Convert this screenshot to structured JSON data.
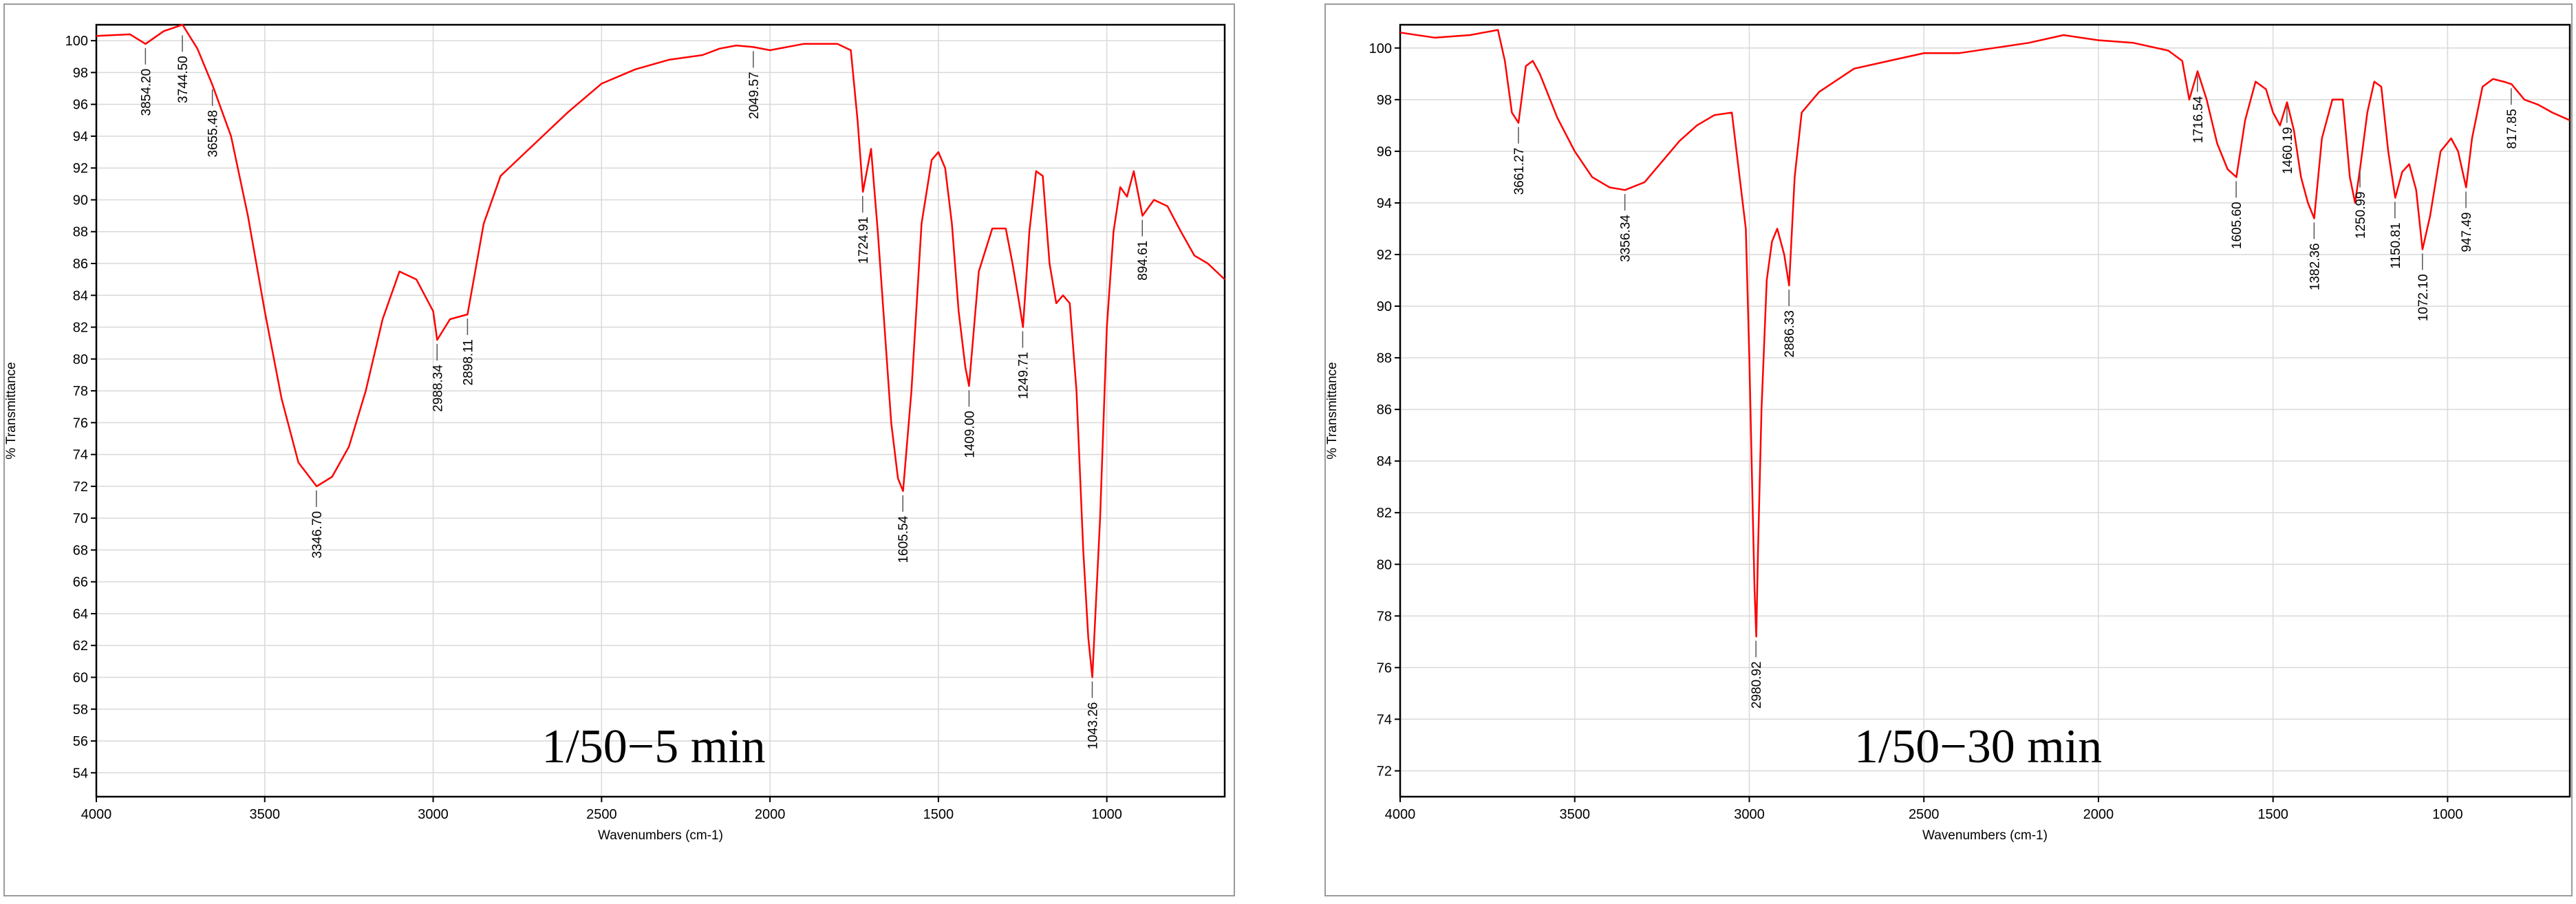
{
  "chart_data": [
    {
      "type": "line",
      "annotation": "1/50−5 min",
      "xlabel": "Wavenumbers (cm-1)",
      "ylabel": "% Transmittance",
      "xlim": [
        4000,
        650
      ],
      "ylim": [
        52.5,
        101
      ],
      "x_ticks": [
        4000,
        3500,
        3000,
        2500,
        2000,
        1500,
        1000
      ],
      "y_ticks": [
        54,
        56,
        58,
        60,
        62,
        64,
        66,
        68,
        70,
        72,
        74,
        76,
        78,
        80,
        82,
        84,
        86,
        88,
        90,
        92,
        94,
        96,
        98,
        100
      ],
      "line_color": "#ff0000",
      "series": [
        {
          "x": [
            4000,
            3900,
            3854,
            3800,
            3744,
            3700,
            3655,
            3600,
            3550,
            3500,
            3450,
            3400,
            3346,
            3300,
            3250,
            3200,
            3150,
            3100,
            3050,
            3000,
            2988,
            2950,
            2898,
            2850,
            2800,
            2700,
            2600,
            2500,
            2400,
            2300,
            2200,
            2150,
            2100,
            2049,
            2000,
            1900,
            1800,
            1760,
            1740,
            1724,
            1700,
            1680,
            1660,
            1640,
            1620,
            1605,
            1580,
            1550,
            1520,
            1500,
            1480,
            1460,
            1440,
            1420,
            1409,
            1380,
            1340,
            1300,
            1280,
            1260,
            1249,
            1230,
            1210,
            1190,
            1170,
            1150,
            1130,
            1110,
            1090,
            1070,
            1055,
            1043,
            1020,
            1000,
            980,
            960,
            940,
            920,
            894,
            860,
            820,
            780,
            740,
            700,
            650
          ],
          "y": [
            100.3,
            100.4,
            99.8,
            100.6,
            101.0,
            99.5,
            97.2,
            94.0,
            89.0,
            83.0,
            77.5,
            73.5,
            72.0,
            72.6,
            74.5,
            78.0,
            82.5,
            85.5,
            85.0,
            83.0,
            81.2,
            82.5,
            82.8,
            88.5,
            91.5,
            93.5,
            95.5,
            97.3,
            98.2,
            98.8,
            99.1,
            99.5,
            99.7,
            99.6,
            99.4,
            99.8,
            99.8,
            99.4,
            95.0,
            90.5,
            93.2,
            88.0,
            82.0,
            76.0,
            72.5,
            71.7,
            78.0,
            88.5,
            92.5,
            93.0,
            92.0,
            88.5,
            83.0,
            79.5,
            78.3,
            85.5,
            88.2,
            88.2,
            86.0,
            83.5,
            82.0,
            88.0,
            91.8,
            91.5,
            86.0,
            83.5,
            84.0,
            83.5,
            78.0,
            68.0,
            62.5,
            60.0,
            70.0,
            82.0,
            88.0,
            90.8,
            90.2,
            91.8,
            89.0,
            90.0,
            89.6,
            88.0,
            86.5,
            86.0,
            85.0
          ]
        }
      ],
      "peak_labels": [
        {
          "label": "3854.20",
          "x": 3854.2,
          "y": 99.8
        },
        {
          "label": "3744.50",
          "x": 3744.5,
          "y": 100.6
        },
        {
          "label": "3655.48",
          "x": 3655.48,
          "y": 97.2
        },
        {
          "label": "3346.70",
          "x": 3346.7,
          "y": 72.0
        },
        {
          "label": "2988.34",
          "x": 2988.34,
          "y": 81.2
        },
        {
          "label": "2898.11",
          "x": 2898.11,
          "y": 82.8
        },
        {
          "label": "2049.57",
          "x": 2049.57,
          "y": 99.6
        },
        {
          "label": "1724.91",
          "x": 1724.91,
          "y": 90.5
        },
        {
          "label": "1605.54",
          "x": 1605.54,
          "y": 71.7
        },
        {
          "label": "1409.00",
          "x": 1409.0,
          "y": 78.3
        },
        {
          "label": "1249.71",
          "x": 1249.71,
          "y": 82.0
        },
        {
          "label": "1043.26",
          "x": 1043.26,
          "y": 60.0
        },
        {
          "label": "894.61",
          "x": 894.61,
          "y": 89.0
        }
      ]
    },
    {
      "type": "line",
      "annotation": "1/50−30 min",
      "xlabel": "Wavenumbers (cm-1)",
      "ylabel": "% Transmittance",
      "xlim": [
        4000,
        650
      ],
      "ylim": [
        71,
        100.9
      ],
      "x_ticks": [
        4000,
        3500,
        3000,
        2500,
        2000,
        1500,
        1000
      ],
      "y_ticks": [
        72,
        74,
        76,
        78,
        80,
        82,
        84,
        86,
        88,
        90,
        92,
        94,
        96,
        98,
        100
      ],
      "line_color": "#ff0000",
      "series": [
        {
          "x": [
            4000,
            3900,
            3800,
            3720,
            3700,
            3680,
            3661,
            3640,
            3620,
            3600,
            3550,
            3500,
            3450,
            3400,
            3356,
            3300,
            3250,
            3200,
            3150,
            3100,
            3050,
            3010,
            3000,
            2990,
            2985,
            2980,
            2975,
            2965,
            2950,
            2935,
            2920,
            2900,
            2886,
            2870,
            2850,
            2800,
            2700,
            2600,
            2500,
            2400,
            2300,
            2200,
            2100,
            2000,
            1900,
            1800,
            1760,
            1740,
            1716,
            1690,
            1660,
            1630,
            1605,
            1580,
            1550,
            1520,
            1500,
            1480,
            1460,
            1440,
            1420,
            1400,
            1382,
            1360,
            1330,
            1300,
            1280,
            1265,
            1250,
            1230,
            1210,
            1190,
            1170,
            1150,
            1130,
            1110,
            1090,
            1072,
            1050,
            1020,
            990,
            970,
            947,
            930,
            900,
            870,
            840,
            817,
            780,
            740,
            700,
            650
          ],
          "y": [
            100.6,
            100.4,
            100.5,
            100.7,
            99.5,
            97.5,
            97.1,
            99.3,
            99.5,
            99.0,
            97.3,
            96.0,
            95.0,
            94.6,
            94.5,
            94.8,
            95.6,
            96.4,
            97.0,
            97.4,
            97.5,
            93.0,
            88.0,
            82.0,
            79.0,
            77.2,
            80.5,
            86.0,
            91.0,
            92.5,
            93.0,
            92.0,
            90.8,
            95.0,
            97.5,
            98.3,
            99.2,
            99.5,
            99.8,
            99.8,
            100.0,
            100.2,
            100.5,
            100.3,
            100.2,
            99.9,
            99.5,
            98.0,
            99.1,
            98.0,
            96.3,
            95.3,
            95.0,
            97.2,
            98.7,
            98.4,
            97.5,
            97.0,
            97.9,
            96.8,
            95.0,
            94.0,
            93.4,
            96.5,
            98.0,
            98.0,
            95.0,
            94.0,
            95.4,
            97.5,
            98.7,
            98.5,
            96.0,
            94.2,
            95.2,
            95.5,
            94.5,
            92.2,
            93.5,
            96.0,
            96.5,
            96.0,
            94.6,
            96.5,
            98.5,
            98.8,
            98.7,
            98.6,
            98.0,
            97.8,
            97.5,
            97.2
          ]
        }
      ],
      "peak_labels": [
        {
          "label": "3661.27",
          "x": 3661.27,
          "y": 97.1
        },
        {
          "label": "3356.34",
          "x": 3356.34,
          "y": 94.5
        },
        {
          "label": "2980.92",
          "x": 2980.92,
          "y": 77.2
        },
        {
          "label": "2886.33",
          "x": 2886.33,
          "y": 90.8
        },
        {
          "label": "1716.54",
          "x": 1716.54,
          "y": 99.1
        },
        {
          "label": "1605.60",
          "x": 1605.6,
          "y": 95.0
        },
        {
          "label": "1460.19",
          "x": 1460.19,
          "y": 97.9
        },
        {
          "label": "1382.36",
          "x": 1382.36,
          "y": 93.4
        },
        {
          "label": "1250.99",
          "x": 1250.99,
          "y": 95.4
        },
        {
          "label": "1150.81",
          "x": 1150.81,
          "y": 94.2
        },
        {
          "label": "1072.10",
          "x": 1072.1,
          "y": 92.2
        },
        {
          "label": "947.49",
          "x": 947.49,
          "y": 94.6
        },
        {
          "label": "817.85",
          "x": 817.85,
          "y": 98.6
        }
      ]
    }
  ]
}
